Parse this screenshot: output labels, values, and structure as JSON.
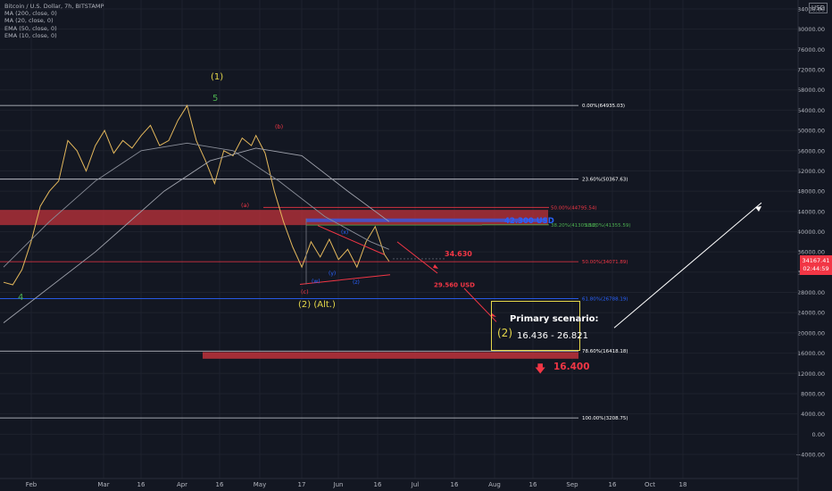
{
  "legend": {
    "symbol": "Bitcoin / U.S. Dollar, 7h, BITSTAMP",
    "indicators": [
      "MA (200, close, 0)",
      "MA (20, close, 0)",
      "EMA (50, close, 0)",
      "EMA (10, close, 0)"
    ]
  },
  "axis_currency": "USD",
  "last_price": {
    "value": "34167.41",
    "countdown": "02:44:59"
  },
  "colors": {
    "background": "#131722",
    "red_zone": "#b5313a",
    "fib_red": "#f23645",
    "fib_blue": "#2962ff",
    "wave_green": "#4caf50",
    "wave_yellow": "#e6d84a"
  },
  "chart_data": {
    "type": "line",
    "series": [
      {
        "values": [
          [
            0,
            30000
          ],
          [
            4,
            29500
          ],
          [
            8,
            32500
          ],
          [
            12,
            38000
          ],
          [
            16,
            45000
          ],
          [
            20,
            48000
          ],
          [
            24,
            50000
          ],
          [
            28,
            58000
          ],
          [
            32,
            56000
          ],
          [
            36,
            52000
          ],
          [
            40,
            57000
          ],
          [
            44,
            60000
          ],
          [
            48,
            55500
          ],
          [
            52,
            58000
          ],
          [
            56,
            56500
          ],
          [
            60,
            59000
          ],
          [
            64,
            61000
          ],
          [
            68,
            57000
          ],
          [
            72,
            58000
          ],
          [
            76,
            62000
          ],
          [
            80,
            64895
          ],
          [
            84,
            58000
          ],
          [
            88,
            54000
          ],
          [
            92,
            49500
          ],
          [
            96,
            56000
          ],
          [
            100,
            55000
          ],
          [
            104,
            58500
          ],
          [
            108,
            57000
          ],
          [
            110,
            59000
          ],
          [
            114,
            55500
          ],
          [
            118,
            48000
          ],
          [
            122,
            42000
          ],
          [
            126,
            37000
          ],
          [
            130,
            33000
          ],
          [
            134,
            38000
          ],
          [
            138,
            35000
          ],
          [
            142,
            38500
          ],
          [
            146,
            34500
          ],
          [
            150,
            36500
          ],
          [
            154,
            33000
          ],
          [
            158,
            38000
          ],
          [
            162,
            41000
          ],
          [
            166,
            35500
          ],
          [
            168,
            34167
          ]
        ]
      },
      {
        "values": [
          [
            0,
            33000
          ],
          [
            20,
            42000
          ],
          [
            40,
            50000
          ],
          [
            60,
            56000
          ],
          [
            80,
            57500
          ],
          [
            100,
            56000
          ],
          [
            120,
            50000
          ],
          [
            140,
            43000
          ],
          [
            160,
            38000
          ],
          [
            168,
            36500
          ]
        ]
      },
      {
        "values": [
          [
            0,
            22000
          ],
          [
            40,
            36000
          ],
          [
            70,
            48000
          ],
          [
            90,
            54000
          ],
          [
            110,
            56500
          ],
          [
            130,
            55000
          ],
          [
            150,
            48000
          ],
          [
            168,
            42000
          ]
        ]
      }
    ],
    "x_axis": {
      "ticks": [
        "Feb",
        "Mar",
        "16",
        "Apr",
        "16",
        "May",
        "17",
        "Jun",
        "16",
        "Jul",
        "16",
        "Aug",
        "16",
        "Sep",
        "16",
        "Oct",
        "18"
      ]
    },
    "y_axis": {
      "scale": "log",
      "min": -6000,
      "max": 84000,
      "ticks": [
        "84000.00",
        "80000.00",
        "76000.00",
        "72000.00",
        "68000.00",
        "64000.00",
        "60000.00",
        "56000.00",
        "52000.00",
        "48000.00",
        "44000.00",
        "40000.00",
        "36000.00",
        "32000.00",
        "28000.00",
        "24000.00",
        "20000.00",
        "16000.00",
        "12000.00",
        "8000.00",
        "4000.00",
        "0.00",
        "−4000.00"
      ]
    },
    "fib_levels": [
      {
        "label": "0.00%(64935.03)",
        "price": 64935
      },
      {
        "label": "23.60%(50367.63)",
        "price": 50367.63
      },
      {
        "label": "50.00%(44795.54)",
        "price": 44795.54
      },
      {
        "label": "38.20%(41305.38)",
        "price": 41305.38
      },
      {
        "label": "38.20%(41355.59)",
        "price": 41355.59
      },
      {
        "label": "50.00%(34071.89)",
        "price": 34071.89
      },
      {
        "label": "61.80%(26788.19)",
        "price": 26788.19
      },
      {
        "label": "78.60%(16418.18)",
        "price": 16418.18
      },
      {
        "label": "100.00%(3208.75)",
        "price": 3208.75
      }
    ],
    "annotations": {
      "wave_1": "(1)",
      "wave_5": "5",
      "wave_4": "4",
      "wave_a": "(a)",
      "wave_b": "(b)",
      "wave_c": "(c)",
      "wave_w": "(w)",
      "wave_x": "(x)",
      "wave_y": "(y)",
      "wave_z": "(z)",
      "wave_2_alt": "(2) (Alt.)",
      "level_42300": "42.300 USD",
      "level_34630": "34.630",
      "level_29560": "29.560 USD",
      "target_16400": "16.400"
    }
  },
  "scenario": {
    "title": "Primary scenario:",
    "wave": "(2)",
    "range": "16.436 - 26.821"
  }
}
